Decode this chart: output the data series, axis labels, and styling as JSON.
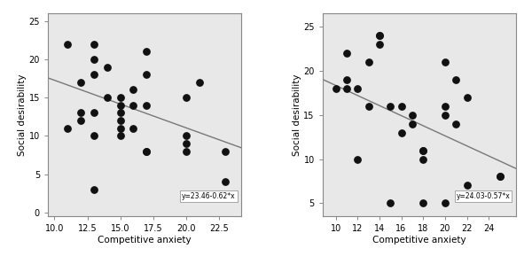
{
  "left_scatter": {
    "x": [
      11,
      11,
      12,
      12,
      12,
      13,
      13,
      13,
      13,
      13,
      13,
      14,
      14,
      15,
      15,
      15,
      15,
      15,
      15,
      16,
      16,
      16,
      17,
      17,
      17,
      17,
      17,
      20,
      20,
      20,
      20,
      21,
      23,
      23
    ],
    "y": [
      11,
      22,
      17,
      13,
      12,
      22,
      18,
      20,
      13,
      10,
      3,
      19,
      15,
      15,
      14,
      13,
      12,
      11,
      10,
      16,
      14,
      11,
      21,
      18,
      14,
      8,
      8,
      15,
      10,
      9,
      8,
      17,
      8,
      4
    ],
    "equation": "y=23.46-0.62*x",
    "intercept": 23.46,
    "slope": -0.62,
    "xlim": [
      9.5,
      24.2
    ],
    "ylim": [
      -0.5,
      26.0
    ],
    "xticks": [
      10.0,
      12.5,
      15.0,
      17.5,
      20.0,
      22.5
    ],
    "yticks": [
      0,
      5,
      10,
      15,
      20,
      25
    ],
    "xlabel": "Competitive anxiety",
    "ylabel": "Social desirability"
  },
  "right_scatter": {
    "x": [
      10,
      11,
      11,
      11,
      12,
      12,
      13,
      13,
      14,
      14,
      14,
      15,
      15,
      16,
      16,
      17,
      17,
      18,
      18,
      18,
      18,
      20,
      20,
      20,
      20,
      21,
      21,
      22,
      22,
      25,
      25
    ],
    "y": [
      18,
      22,
      19,
      18,
      18,
      10,
      21,
      16,
      24,
      24,
      23,
      5,
      16,
      13,
      16,
      15,
      14,
      11,
      11,
      10,
      5,
      21,
      16,
      15,
      5,
      19,
      14,
      17,
      7,
      8,
      8
    ],
    "equation": "y=24.03-0.57*x",
    "intercept": 24.03,
    "slope": -0.57,
    "xlim": [
      8.8,
      26.5
    ],
    "ylim": [
      3.5,
      26.5
    ],
    "xticks": [
      10,
      12,
      14,
      16,
      18,
      20,
      22,
      24
    ],
    "yticks": [
      5,
      10,
      15,
      20,
      25
    ],
    "xlabel": "Competitive anxiety",
    "ylabel": "Social desirability"
  },
  "dot_color": "#111111",
  "line_color": "#777777",
  "box_facecolor": "#ffffff",
  "box_edgecolor": "#999999",
  "equation_fontsize": 5.5,
  "axis_label_fontsize": 7.5,
  "tick_fontsize": 7.0,
  "dot_size": 28,
  "plot_bg_color": "#e8e8e8",
  "figure_bg": "#ffffff",
  "spine_color": "#888888"
}
